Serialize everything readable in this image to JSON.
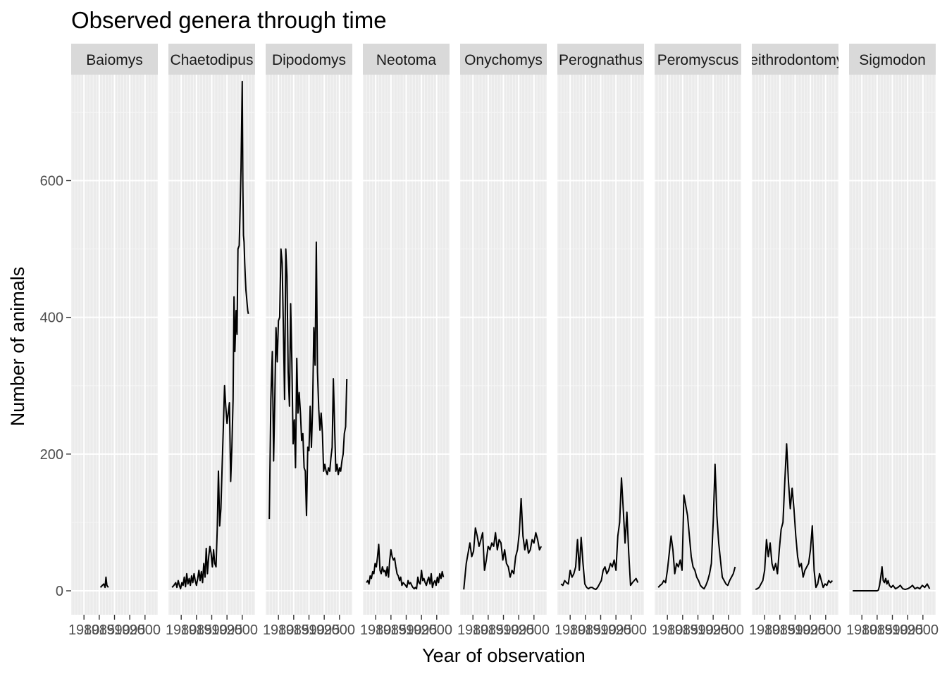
{
  "colors": {
    "panel_background": "#ebebeb",
    "grid_major": "#ffffff",
    "grid_minor": "#f5f5f5",
    "strip_background": "#d9d9d9",
    "line": "#000000",
    "tick_label": "#4d4d4d"
  },
  "chart_data": {
    "type": "line",
    "title": "Observed genera through time",
    "xlabel": "Year of observation",
    "ylabel": "Number of animals",
    "ylim": [
      -35,
      755
    ],
    "yticks": [
      0,
      200,
      400,
      600
    ],
    "ytick_labels": [
      "0",
      "200",
      "400",
      "600"
    ],
    "xlim": [
      1975.8,
      2004.2
    ],
    "xticks": [
      1980,
      1985,
      1990,
      1995,
      2000
    ],
    "xtick_labels": [
      "1980",
      "1985",
      "1990",
      "1995",
      "2000"
    ],
    "grid": true,
    "legend": "none",
    "facets": [
      {
        "label": "Baiomys",
        "x": [
          1985.4,
          1986.0,
          1986.5,
          1986.9,
          1987.2,
          1987.5,
          1988.0
        ],
        "y": [
          5,
          8,
          10,
          5,
          20,
          8,
          5
        ]
      },
      {
        "label": "Chaetodipus",
        "x": [
          1977.0,
          1977.6,
          1978.2,
          1978.6,
          1979.0,
          1979.4,
          1979.8,
          1980.2,
          1980.6,
          1981.0,
          1981.4,
          1981.8,
          1982.2,
          1982.6,
          1983.0,
          1983.4,
          1983.8,
          1984.2,
          1984.6,
          1985.0,
          1985.4,
          1985.8,
          1986.2,
          1986.6,
          1987.0,
          1987.4,
          1987.8,
          1988.2,
          1988.6,
          1989.0,
          1989.4,
          1989.8,
          1990.2,
          1990.6,
          1991.0,
          1991.4,
          1991.8,
          1992.2,
          1992.6,
          1993.0,
          1993.4,
          1993.8,
          1994.2,
          1994.6,
          1995.0,
          1995.4,
          1995.8,
          1996.2,
          1996.6,
          1997.0,
          1997.3,
          1997.6,
          1998.0,
          1998.3,
          1998.6,
          1999.0,
          1999.3,
          1999.6,
          2000.0,
          2000.2,
          2000.4,
          2000.6,
          2000.8,
          2001.0,
          2001.2,
          2001.4,
          2001.6,
          2001.8,
          2002.0
        ],
        "y": [
          5,
          8,
          12,
          5,
          15,
          8,
          3,
          12,
          8,
          20,
          6,
          25,
          10,
          18,
          8,
          22,
          12,
          25,
          15,
          8,
          18,
          30,
          15,
          28,
          12,
          40,
          20,
          62,
          25,
          50,
          65,
          55,
          35,
          60,
          40,
          35,
          90,
          175,
          95,
          120,
          180,
          240,
          300,
          270,
          245,
          260,
          275,
          160,
          210,
          280,
          430,
          350,
          410,
          375,
          500,
          505,
          560,
          620,
          745,
          590,
          520,
          510,
          480,
          460,
          440,
          430,
          420,
          410,
          405
        ]
      },
      {
        "label": "Dipodomys",
        "x": [
          1977.0,
          1977.5,
          1978.0,
          1978.4,
          1978.8,
          1979.2,
          1979.6,
          1980.0,
          1980.4,
          1980.8,
          1981.2,
          1981.6,
          1982.0,
          1982.4,
          1982.8,
          1983.2,
          1983.6,
          1984.0,
          1984.4,
          1984.8,
          1985.2,
          1985.6,
          1986.0,
          1986.4,
          1986.8,
          1987.2,
          1987.6,
          1988.0,
          1988.4,
          1988.8,
          1989.2,
          1989.6,
          1990.0,
          1990.4,
          1990.8,
          1991.2,
          1991.6,
          1992.0,
          1992.4,
          1992.8,
          1993.2,
          1993.6,
          1994.0,
          1994.4,
          1994.8,
          1995.2,
          1995.6,
          1996.0,
          1996.4,
          1996.8,
          1997.2,
          1997.6,
          1998.0,
          1998.4,
          1998.8,
          1999.2,
          1999.6,
          2000.0,
          2000.4,
          2000.8,
          2001.2,
          2001.6,
          2002.0,
          2002.4
        ],
        "y": [
          105,
          280,
          350,
          190,
          280,
          385,
          335,
          395,
          400,
          500,
          480,
          390,
          280,
          500,
          460,
          320,
          270,
          420,
          335,
          215,
          250,
          180,
          340,
          260,
          290,
          260,
          220,
          230,
          180,
          175,
          110,
          210,
          205,
          270,
          210,
          270,
          385,
          330,
          510,
          320,
          265,
          235,
          260,
          230,
          175,
          185,
          175,
          170,
          180,
          175,
          195,
          210,
          310,
          240,
          175,
          185,
          170,
          180,
          175,
          190,
          200,
          230,
          240,
          310
        ]
      },
      {
        "label": "Neotoma",
        "x": [
          1977.0,
          1977.4,
          1977.8,
          1978.2,
          1978.6,
          1979.0,
          1979.4,
          1979.8,
          1980.2,
          1980.6,
          1981.0,
          1981.4,
          1981.8,
          1982.2,
          1982.6,
          1983.0,
          1983.4,
          1983.8,
          1984.2,
          1984.6,
          1985.0,
          1985.4,
          1985.8,
          1986.2,
          1986.6,
          1987.0,
          1987.4,
          1987.8,
          1988.2,
          1988.6,
          1989.0,
          1989.4,
          1989.8,
          1990.2,
          1990.6,
          1991.0,
          1991.4,
          1991.8,
          1992.2,
          1992.6,
          1993.0,
          1993.4,
          1993.8,
          1994.2,
          1994.6,
          1995.0,
          1995.4,
          1995.8,
          1996.2,
          1996.6,
          1997.0,
          1997.4,
          1997.8,
          1998.2,
          1998.6,
          1999.0,
          1999.4,
          1999.8,
          2000.2,
          2000.6,
          2001.0,
          2001.4,
          2001.8,
          2002.2
        ],
        "y": [
          12,
          15,
          10,
          22,
          18,
          28,
          25,
          40,
          35,
          50,
          68,
          30,
          25,
          35,
          28,
          30,
          22,
          35,
          20,
          45,
          60,
          50,
          45,
          48,
          35,
          25,
          22,
          15,
          20,
          8,
          12,
          10,
          8,
          5,
          15,
          10,
          12,
          8,
          5,
          3,
          5,
          3,
          20,
          12,
          10,
          30,
          15,
          18,
          12,
          8,
          15,
          20,
          10,
          25,
          5,
          12,
          15,
          8,
          20,
          12,
          25,
          18,
          28,
          20
        ]
      },
      {
        "label": "Onychomys",
        "x": [
          1977.0,
          1977.8,
          1978.4,
          1979.0,
          1979.6,
          1980.2,
          1980.8,
          1981.4,
          1982.0,
          1982.6,
          1983.2,
          1983.8,
          1984.4,
          1985.0,
          1985.6,
          1986.2,
          1986.8,
          1987.4,
          1988.0,
          1988.6,
          1989.2,
          1989.8,
          1990.4,
          1991.0,
          1991.6,
          1992.2,
          1992.8,
          1993.4,
          1994.0,
          1994.6,
          1995.2,
          1995.8,
          1996.4,
          1997.0,
          1997.6,
          1998.2,
          1998.8,
          1999.4,
          2000.0,
          2000.6,
          2001.2,
          2001.8,
          2002.4
        ],
        "y": [
          2,
          40,
          55,
          70,
          50,
          58,
          92,
          80,
          65,
          75,
          85,
          30,
          45,
          65,
          60,
          70,
          65,
          85,
          60,
          75,
          70,
          45,
          60,
          40,
          35,
          20,
          30,
          25,
          50,
          60,
          85,
          135,
          80,
          60,
          75,
          55,
          60,
          75,
          70,
          85,
          75,
          60,
          65
        ]
      },
      {
        "label": "Perognathus",
        "x": [
          1977.0,
          1977.6,
          1978.2,
          1978.8,
          1979.4,
          1980.0,
          1980.6,
          1981.2,
          1981.8,
          1982.4,
          1983.0,
          1983.6,
          1984.2,
          1984.8,
          1985.4,
          1986.0,
          1986.6,
          1987.2,
          1987.8,
          1988.4,
          1989.0,
          1989.6,
          1990.2,
          1990.8,
          1991.4,
          1992.0,
          1992.6,
          1993.2,
          1993.8,
          1994.4,
          1995.0,
          1995.6,
          1996.2,
          1996.8,
          1997.4,
          1998.0,
          1998.6,
          1999.2,
          1999.8,
          2000.4,
          2001.0,
          2001.6,
          2002.2
        ],
        "y": [
          10,
          8,
          15,
          12,
          10,
          30,
          20,
          25,
          35,
          75,
          30,
          78,
          40,
          10,
          5,
          3,
          5,
          5,
          3,
          2,
          5,
          10,
          15,
          30,
          35,
          25,
          30,
          40,
          35,
          45,
          30,
          80,
          100,
          165,
          120,
          70,
          115,
          55,
          8,
          12,
          15,
          18,
          12
        ]
      },
      {
        "label": "Peromyscus",
        "x": [
          1977.0,
          1977.6,
          1978.2,
          1978.8,
          1979.4,
          1980.0,
          1980.6,
          1981.2,
          1981.8,
          1982.4,
          1983.0,
          1983.6,
          1984.2,
          1984.8,
          1985.4,
          1986.0,
          1986.6,
          1987.2,
          1987.8,
          1988.4,
          1989.0,
          1989.6,
          1990.2,
          1990.8,
          1991.4,
          1992.0,
          1992.6,
          1993.2,
          1993.8,
          1994.4,
          1995.0,
          1995.6,
          1996.2,
          1996.8,
          1997.4,
          1998.0,
          1998.6,
          1999.2,
          1999.8,
          2000.4,
          2001.0,
          2001.6,
          2002.2
        ],
        "y": [
          5,
          8,
          10,
          15,
          12,
          30,
          55,
          80,
          60,
          25,
          40,
          35,
          45,
          30,
          140,
          125,
          110,
          80,
          50,
          35,
          30,
          20,
          15,
          8,
          5,
          3,
          8,
          15,
          25,
          40,
          100,
          185,
          110,
          70,
          45,
          20,
          15,
          10,
          8,
          15,
          20,
          25,
          35
        ]
      },
      {
        "label": "Reithrodontomys",
        "x": [
          1977.0,
          1977.6,
          1978.2,
          1978.8,
          1979.4,
          1980.0,
          1980.6,
          1981.2,
          1981.8,
          1982.4,
          1983.0,
          1983.6,
          1984.2,
          1984.8,
          1985.4,
          1986.0,
          1986.6,
          1987.2,
          1987.8,
          1988.4,
          1989.0,
          1989.6,
          1990.2,
          1990.8,
          1991.4,
          1992.0,
          1992.6,
          1993.2,
          1993.8,
          1994.4,
          1995.0,
          1995.6,
          1996.2,
          1996.8,
          1997.4,
          1998.0,
          1998.6,
          1999.2,
          1999.8,
          2000.4,
          2001.0,
          2001.6,
          2002.2
        ],
        "y": [
          2,
          3,
          5,
          10,
          15,
          30,
          75,
          50,
          70,
          40,
          30,
          40,
          25,
          60,
          90,
          100,
          160,
          215,
          160,
          120,
          150,
          120,
          80,
          50,
          35,
          40,
          20,
          30,
          35,
          40,
          60,
          95,
          30,
          5,
          10,
          25,
          15,
          5,
          10,
          8,
          15,
          12,
          15
        ]
      },
      {
        "label": "Sigmodon",
        "x": [
          1977.0,
          1978.0,
          1979.0,
          1980.0,
          1981.0,
          1982.0,
          1983.0,
          1984.0,
          1984.6,
          1985.0,
          1985.4,
          1985.8,
          1986.2,
          1986.6,
          1987.0,
          1987.4,
          1987.8,
          1988.2,
          1988.6,
          1989.0,
          1989.6,
          1990.2,
          1991.0,
          1991.8,
          1992.6,
          1993.4,
          1994.2,
          1995.0,
          1995.8,
          1996.6,
          1997.4,
          1998.2,
          1999.0,
          1999.8,
          2000.6,
          2001.4,
          2002.2
        ],
        "y": [
          0,
          0,
          0,
          0,
          0,
          0,
          0,
          0,
          0,
          0,
          1,
          8,
          20,
          35,
          15,
          12,
          18,
          10,
          15,
          8,
          5,
          8,
          3,
          5,
          8,
          3,
          2,
          3,
          5,
          8,
          3,
          5,
          3,
          8,
          5,
          10,
          3
        ]
      }
    ]
  }
}
